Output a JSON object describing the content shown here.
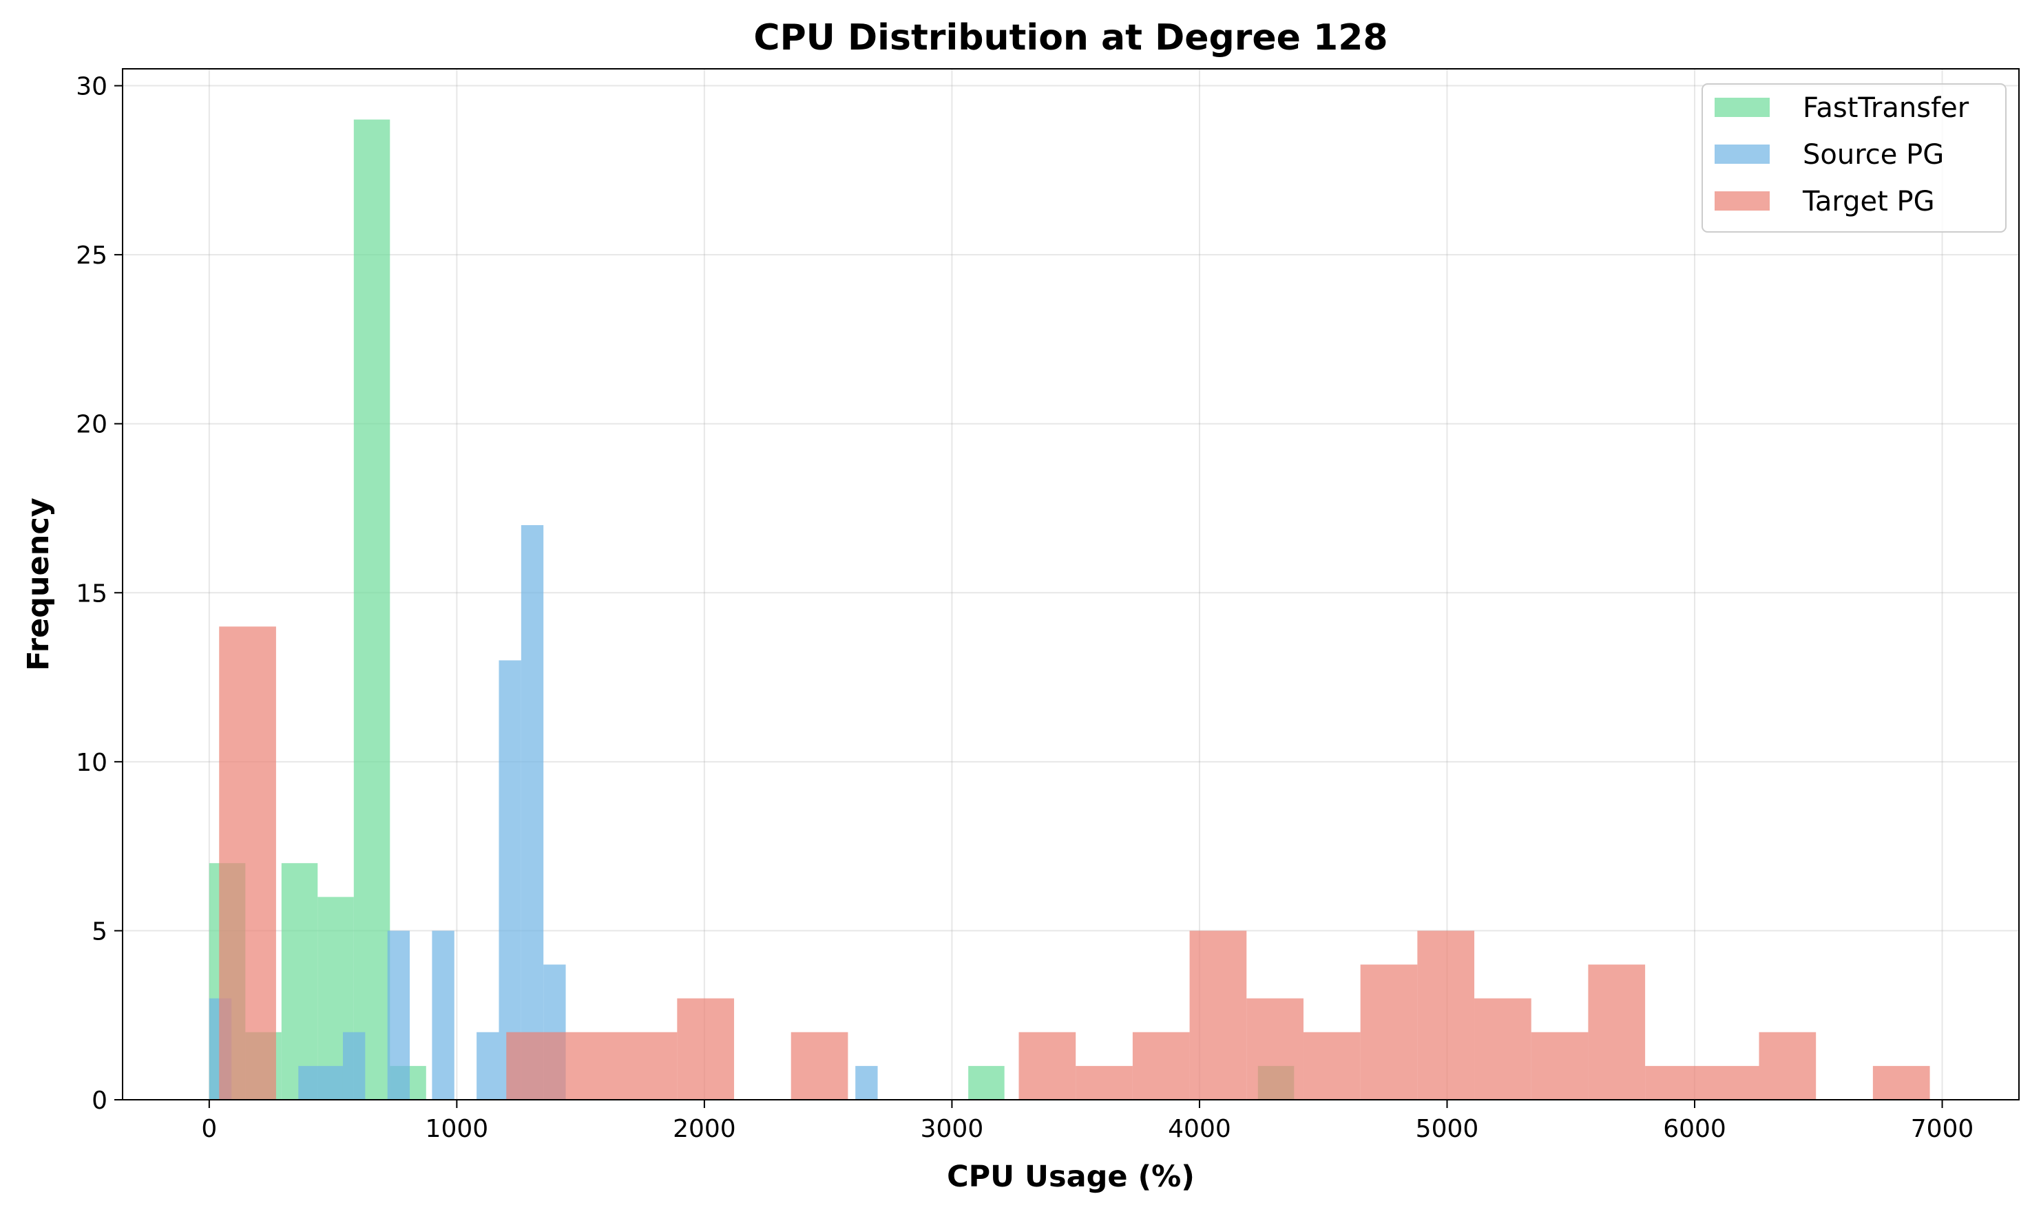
{
  "chart_data": {
    "type": "histogram",
    "title": "CPU Distribution at Degree 128",
    "xlabel": "CPU Usage (%)",
    "ylabel": "Frequency",
    "xlim": [
      -350,
      7310
    ],
    "ylim": [
      0,
      30.5
    ],
    "xticks": [
      0,
      1000,
      2000,
      3000,
      4000,
      5000,
      6000,
      7000
    ],
    "yticks": [
      0,
      5,
      10,
      15,
      20,
      25,
      30
    ],
    "grid": true,
    "legend_position": "top-right",
    "bar_opacity": 0.7,
    "series": [
      {
        "name": "FastTransfer",
        "color": "#6ddb9a",
        "bins": [
          {
            "x0": 0,
            "x1": 146,
            "count": 7
          },
          {
            "x0": 146,
            "x1": 292,
            "count": 2
          },
          {
            "x0": 292,
            "x1": 438,
            "count": 7
          },
          {
            "x0": 438,
            "x1": 584,
            "count": 6
          },
          {
            "x0": 584,
            "x1": 730,
            "count": 29
          },
          {
            "x0": 730,
            "x1": 876,
            "count": 1
          },
          {
            "x0": 3066,
            "x1": 3212,
            "count": 1
          },
          {
            "x0": 4236,
            "x1": 4382,
            "count": 1
          }
        ]
      },
      {
        "name": "Source PG",
        "color": "#6fb4e4",
        "bins": [
          {
            "x0": 0,
            "x1": 90,
            "count": 3
          },
          {
            "x0": 360,
            "x1": 540,
            "count": 1
          },
          {
            "x0": 540,
            "x1": 630,
            "count": 2
          },
          {
            "x0": 720,
            "x1": 810,
            "count": 5
          },
          {
            "x0": 900,
            "x1": 990,
            "count": 5
          },
          {
            "x0": 1080,
            "x1": 1170,
            "count": 2
          },
          {
            "x0": 1170,
            "x1": 1260,
            "count": 13
          },
          {
            "x0": 1260,
            "x1": 1350,
            "count": 17
          },
          {
            "x0": 1350,
            "x1": 1440,
            "count": 4
          },
          {
            "x0": 2610,
            "x1": 2700,
            "count": 1
          }
        ]
      },
      {
        "name": "Target PG",
        "color": "#eb8275",
        "bins": [
          {
            "x0": 40,
            "x1": 270,
            "count": 14
          },
          {
            "x0": 1200,
            "x1": 1430,
            "count": 2
          },
          {
            "x0": 1430,
            "x1": 1890,
            "count": 2
          },
          {
            "x0": 1890,
            "x1": 2120,
            "count": 3
          },
          {
            "x0": 2350,
            "x1": 2580,
            "count": 2
          },
          {
            "x0": 3270,
            "x1": 3500,
            "count": 2
          },
          {
            "x0": 3500,
            "x1": 3730,
            "count": 1
          },
          {
            "x0": 3730,
            "x1": 3960,
            "count": 2
          },
          {
            "x0": 3960,
            "x1": 4190,
            "count": 5
          },
          {
            "x0": 4190,
            "x1": 4420,
            "count": 3
          },
          {
            "x0": 4420,
            "x1": 4650,
            "count": 2
          },
          {
            "x0": 4650,
            "x1": 4880,
            "count": 4
          },
          {
            "x0": 4880,
            "x1": 5110,
            "count": 5
          },
          {
            "x0": 5110,
            "x1": 5340,
            "count": 3
          },
          {
            "x0": 5340,
            "x1": 5570,
            "count": 2
          },
          {
            "x0": 5570,
            "x1": 5800,
            "count": 4
          },
          {
            "x0": 5800,
            "x1": 6260,
            "count": 1
          },
          {
            "x0": 6260,
            "x1": 6490,
            "count": 2
          },
          {
            "x0": 6720,
            "x1": 6950,
            "count": 1
          }
        ]
      }
    ]
  }
}
